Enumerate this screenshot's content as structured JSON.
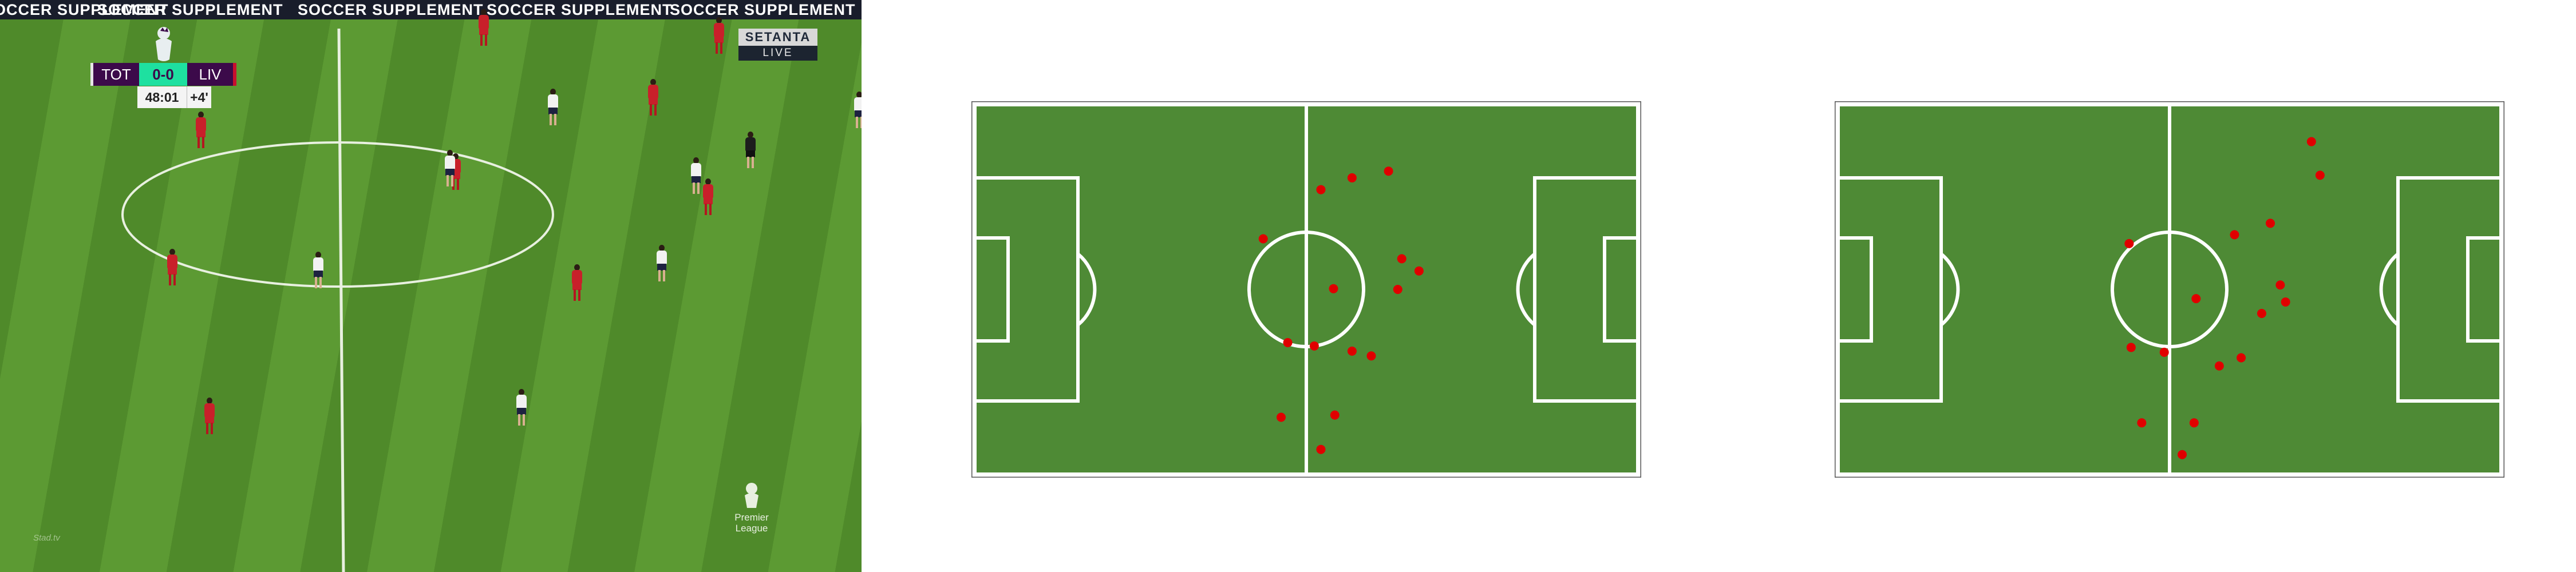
{
  "broadcast": {
    "ad_board": "SOCCER SUPPLEMENT",
    "scoreboard": {
      "home": "TOT",
      "score": "0-0",
      "away": "LIV",
      "time": "48:01",
      "added": "+4'"
    },
    "channel": {
      "name": "SETANTA",
      "status": "LIVE"
    },
    "competition_logo": "Premier\nLeague",
    "watermark": "Stad.tv",
    "colors": {
      "home": "#3c0a4a",
      "score_bg": "#1ee0a0",
      "liverpool": "#c8202a",
      "tottenham": "#f2f2f2"
    }
  },
  "maps": [
    {
      "name": "tactical-map-1",
      "pitch_color": "#4e8a35",
      "dot_color": "#e00000",
      "players": [
        {
          "x": 52.2,
          "y": 23.0
        },
        {
          "x": 56.9,
          "y": 19.8
        },
        {
          "x": 62.4,
          "y": 18.0
        },
        {
          "x": 67.0,
          "y": 45.0
        },
        {
          "x": 64.4,
          "y": 41.7
        },
        {
          "x": 63.8,
          "y": 50.0
        },
        {
          "x": 54.1,
          "y": 49.8
        },
        {
          "x": 59.8,
          "y": 68.0
        },
        {
          "x": 56.9,
          "y": 66.7
        },
        {
          "x": 51.2,
          "y": 65.3
        },
        {
          "x": 47.2,
          "y": 64.4
        },
        {
          "x": 43.5,
          "y": 36.3
        },
        {
          "x": 54.3,
          "y": 84.0
        },
        {
          "x": 46.2,
          "y": 84.6
        },
        {
          "x": 52.2,
          "y": 93.3
        }
      ]
    },
    {
      "name": "tactical-map-2",
      "pitch_color": "#4e8a35",
      "dot_color": "#e00000",
      "players": [
        {
          "x": 71.4,
          "y": 10.0
        },
        {
          "x": 72.7,
          "y": 19.1
        },
        {
          "x": 65.2,
          "y": 32.1
        },
        {
          "x": 59.8,
          "y": 35.2
        },
        {
          "x": 66.7,
          "y": 48.8
        },
        {
          "x": 67.5,
          "y": 53.4
        },
        {
          "x": 63.9,
          "y": 56.5
        },
        {
          "x": 54.0,
          "y": 52.5
        },
        {
          "x": 43.9,
          "y": 37.6
        },
        {
          "x": 60.8,
          "y": 68.5
        },
        {
          "x": 57.5,
          "y": 70.7
        },
        {
          "x": 49.2,
          "y": 67.0
        },
        {
          "x": 44.2,
          "y": 65.7
        },
        {
          "x": 53.7,
          "y": 86.1
        },
        {
          "x": 45.8,
          "y": 86.1
        },
        {
          "x": 51.9,
          "y": 94.7
        }
      ]
    }
  ]
}
